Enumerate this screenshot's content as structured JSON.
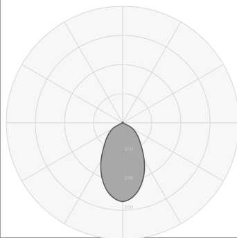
{
  "chart_data": {
    "type": "polar",
    "title": "",
    "angle_step_deg": 30,
    "radial_rings": 4,
    "ring_labels": [
      "100",
      "200",
      "300"
    ],
    "rmax": 400,
    "series": [
      {
        "points": [
          {
            "angle_deg": 90,
            "r": 0
          },
          {
            "angle_deg": 60,
            "r": 40
          },
          {
            "angle_deg": 45,
            "r": 80
          },
          {
            "angle_deg": 30,
            "r": 148
          },
          {
            "angle_deg": 20,
            "r": 205
          },
          {
            "angle_deg": 10,
            "r": 250
          },
          {
            "angle_deg": 0,
            "r": 270
          },
          {
            "angle_deg": -10,
            "r": 250
          },
          {
            "angle_deg": -20,
            "r": 205
          },
          {
            "angle_deg": -30,
            "r": 148
          },
          {
            "angle_deg": -45,
            "r": 80
          },
          {
            "angle_deg": -60,
            "r": 40
          },
          {
            "angle_deg": -90,
            "r": 0
          }
        ]
      }
    ],
    "colors": {
      "grid": "#d6d6d6",
      "plot_background": "#f7f7f7",
      "fill": "#a3a3a3",
      "stroke": "#5a5a5a"
    }
  }
}
